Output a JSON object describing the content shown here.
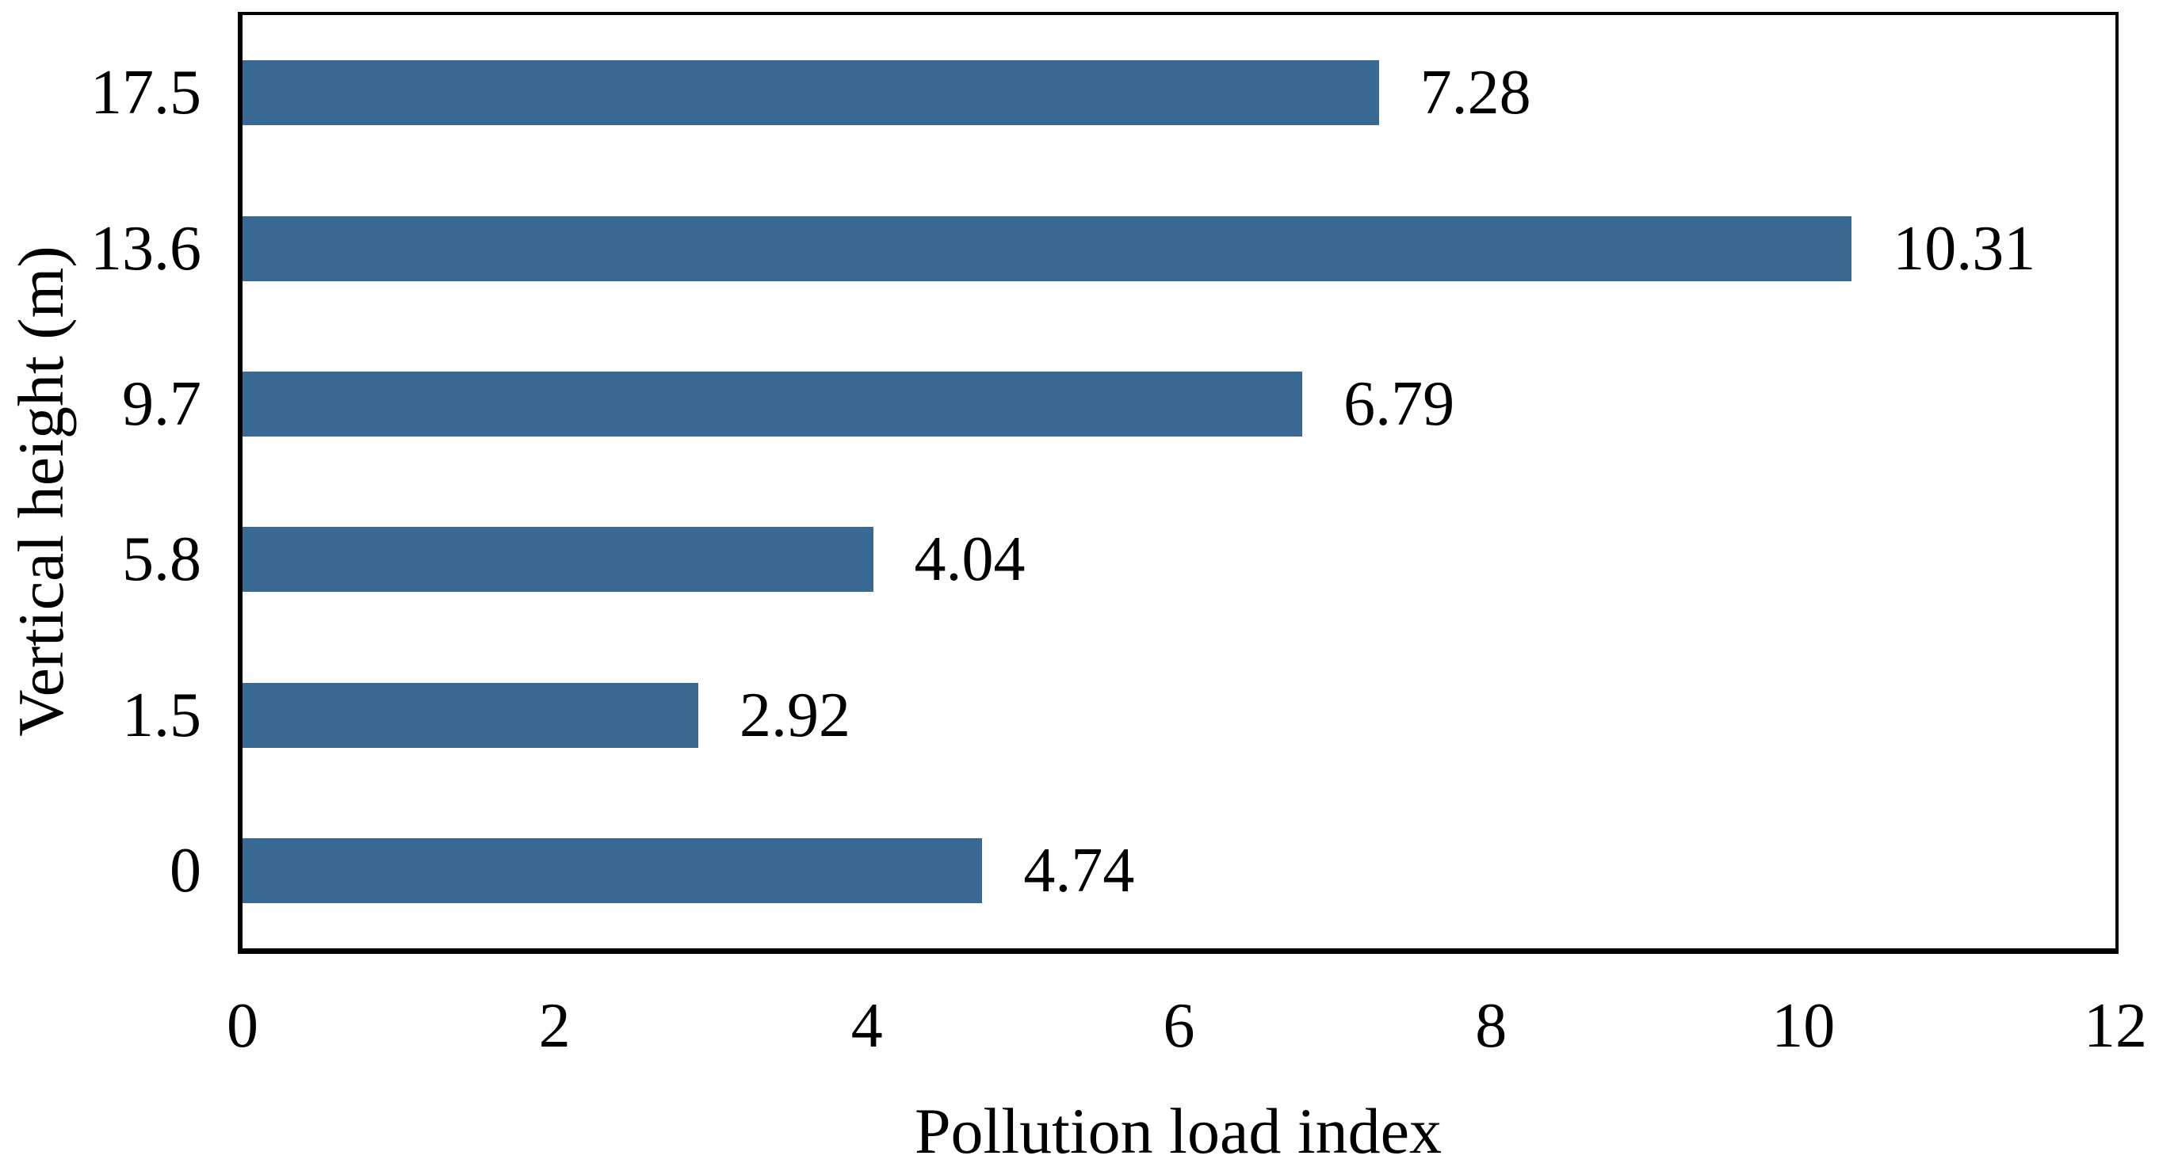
{
  "figure": {
    "background_color": "#ffffff",
    "text_color": "#000000",
    "frame_color": "#000000"
  },
  "chart_data": {
    "type": "bar",
    "orientation": "horizontal",
    "xlabel": "Pollution load index",
    "ylabel": "Vertical height (m)",
    "categories": [
      "17.5",
      "13.6",
      "9.7",
      "5.8",
      "1.5",
      "0"
    ],
    "values": [
      7.28,
      10.31,
      6.79,
      4.04,
      2.92,
      4.74
    ],
    "value_labels": [
      "7.28",
      "10.31",
      "6.79",
      "4.04",
      "2.92",
      "4.74"
    ],
    "xlim": [
      0,
      12
    ],
    "xtick_values": [
      0,
      2,
      4,
      6,
      8,
      10,
      12
    ],
    "xtick_labels": [
      "0",
      "2",
      "4",
      "6",
      "8",
      "10",
      "12"
    ],
    "grid": false,
    "legend_position": "none",
    "bar_color": "#396892"
  }
}
